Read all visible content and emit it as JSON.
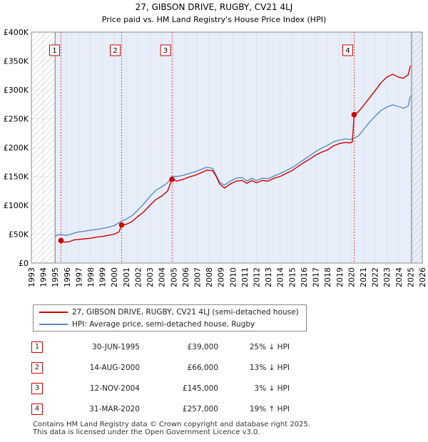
{
  "chart_data": {
    "type": "line",
    "title": "27, GIBSON DRIVE, RUGBY, CV21 4LJ",
    "subtitle": "Price paid vs. HM Land Registry's House Price Index (HPI)",
    "xlim": [
      1993,
      2026
    ],
    "ylim": [
      0,
      400000
    ],
    "x_ticks": [
      "1993",
      "1994",
      "1995",
      "1996",
      "1997",
      "1998",
      "1999",
      "2000",
      "2001",
      "2002",
      "2003",
      "2004",
      "2005",
      "2006",
      "2007",
      "2008",
      "2009",
      "2010",
      "2011",
      "2012",
      "2013",
      "2014",
      "2015",
      "2016",
      "2017",
      "2018",
      "2019",
      "2020",
      "2021",
      "2022",
      "2023",
      "2024",
      "2025",
      "2026"
    ],
    "y_ticks": [
      {
        "value": 0,
        "label": "£0"
      },
      {
        "value": 50000,
        "label": "£50K"
      },
      {
        "value": 100000,
        "label": "£100K"
      },
      {
        "value": 150000,
        "label": "£150K"
      },
      {
        "value": 200000,
        "label": "£200K"
      },
      {
        "value": 250000,
        "label": "£250K"
      },
      {
        "value": 300000,
        "label": "£300K"
      },
      {
        "value": 350000,
        "label": "£350K"
      },
      {
        "value": 400000,
        "label": "£400K"
      }
    ],
    "hatched_before": 1995.0,
    "hatched_after": 2025.1,
    "series": [
      {
        "name": "27, GIBSON DRIVE, RUGBY, CV21 4LJ (semi-detached house)",
        "color": "#cc0000",
        "points": [
          [
            1995.3,
            38000
          ],
          [
            1995.5,
            39000
          ],
          [
            1995.8,
            36000
          ],
          [
            1996.2,
            37000
          ],
          [
            1996.6,
            40000
          ],
          [
            1997.0,
            41000
          ],
          [
            1997.5,
            42000
          ],
          [
            1998.0,
            43000
          ],
          [
            1998.5,
            45000
          ],
          [
            1999.0,
            46000
          ],
          [
            1999.5,
            48000
          ],
          [
            2000.0,
            50000
          ],
          [
            2000.4,
            54000
          ],
          [
            2000.62,
            66000
          ],
          [
            2001.0,
            67000
          ],
          [
            2001.5,
            72000
          ],
          [
            2002.0,
            81000
          ],
          [
            2002.5,
            89000
          ],
          [
            2003.0,
            100000
          ],
          [
            2003.5,
            110000
          ],
          [
            2004.0,
            116000
          ],
          [
            2004.5,
            125000
          ],
          [
            2004.87,
            145000
          ],
          [
            2005.3,
            142000
          ],
          [
            2005.8,
            145000
          ],
          [
            2006.3,
            149000
          ],
          [
            2006.8,
            152000
          ],
          [
            2007.3,
            156000
          ],
          [
            2007.8,
            161000
          ],
          [
            2008.3,
            160000
          ],
          [
            2008.6,
            150000
          ],
          [
            2008.9,
            137000
          ],
          [
            2009.3,
            130000
          ],
          [
            2009.8,
            137000
          ],
          [
            2010.3,
            142000
          ],
          [
            2010.8,
            143000
          ],
          [
            2011.2,
            138000
          ],
          [
            2011.6,
            143000
          ],
          [
            2012.0,
            139000
          ],
          [
            2012.5,
            143000
          ],
          [
            2013.0,
            142000
          ],
          [
            2013.5,
            147000
          ],
          [
            2014.0,
            150000
          ],
          [
            2014.5,
            155000
          ],
          [
            2015.0,
            160000
          ],
          [
            2015.5,
            167000
          ],
          [
            2016.0,
            174000
          ],
          [
            2016.5,
            180000
          ],
          [
            2017.0,
            187000
          ],
          [
            2017.5,
            192000
          ],
          [
            2018.0,
            196000
          ],
          [
            2018.5,
            203000
          ],
          [
            2019.0,
            207000
          ],
          [
            2019.5,
            209000
          ],
          [
            2019.9,
            208000
          ],
          [
            2020.1,
            210000
          ],
          [
            2020.25,
            257000
          ],
          [
            2020.6,
            262000
          ],
          [
            2021.0,
            272000
          ],
          [
            2021.5,
            285000
          ],
          [
            2022.0,
            298000
          ],
          [
            2022.5,
            312000
          ],
          [
            2023.0,
            322000
          ],
          [
            2023.5,
            327000
          ],
          [
            2024.0,
            322000
          ],
          [
            2024.4,
            320000
          ],
          [
            2024.8,
            326000
          ],
          [
            2025.0,
            342000
          ]
        ]
      },
      {
        "name": "HPI: Average price, semi-detached house, Rugby",
        "color": "#5b8ac6",
        "points": [
          [
            1995.0,
            47000
          ],
          [
            1995.5,
            50000
          ],
          [
            1995.8,
            48000
          ],
          [
            1996.2,
            49000
          ],
          [
            1996.6,
            52000
          ],
          [
            1997.0,
            54000
          ],
          [
            1997.5,
            55000
          ],
          [
            1998.0,
            57000
          ],
          [
            1998.5,
            58000
          ],
          [
            1999.0,
            60000
          ],
          [
            1999.5,
            62000
          ],
          [
            2000.0,
            65000
          ],
          [
            2000.4,
            70000
          ],
          [
            2000.62,
            73000
          ],
          [
            2001.0,
            76000
          ],
          [
            2001.5,
            82000
          ],
          [
            2002.0,
            92000
          ],
          [
            2002.5,
            103000
          ],
          [
            2003.0,
            115000
          ],
          [
            2003.5,
            126000
          ],
          [
            2004.0,
            132000
          ],
          [
            2004.5,
            139000
          ],
          [
            2004.87,
            150000
          ],
          [
            2005.3,
            150000
          ],
          [
            2005.8,
            152000
          ],
          [
            2006.3,
            155000
          ],
          [
            2006.8,
            158000
          ],
          [
            2007.3,
            162000
          ],
          [
            2007.8,
            166000
          ],
          [
            2008.3,
            164000
          ],
          [
            2008.6,
            152000
          ],
          [
            2008.9,
            140000
          ],
          [
            2009.3,
            135000
          ],
          [
            2009.8,
            142000
          ],
          [
            2010.3,
            147000
          ],
          [
            2010.8,
            148000
          ],
          [
            2011.2,
            142000
          ],
          [
            2011.6,
            147000
          ],
          [
            2012.0,
            143000
          ],
          [
            2012.5,
            147000
          ],
          [
            2013.0,
            146000
          ],
          [
            2013.5,
            151000
          ],
          [
            2014.0,
            155000
          ],
          [
            2014.5,
            160000
          ],
          [
            2015.0,
            165000
          ],
          [
            2015.5,
            172000
          ],
          [
            2016.0,
            179000
          ],
          [
            2016.5,
            186000
          ],
          [
            2017.0,
            193000
          ],
          [
            2017.5,
            199000
          ],
          [
            2018.0,
            204000
          ],
          [
            2018.5,
            210000
          ],
          [
            2019.0,
            213000
          ],
          [
            2019.5,
            215000
          ],
          [
            2019.9,
            214000
          ],
          [
            2020.25,
            216000
          ],
          [
            2020.6,
            220000
          ],
          [
            2021.0,
            230000
          ],
          [
            2021.5,
            243000
          ],
          [
            2022.0,
            254000
          ],
          [
            2022.5,
            264000
          ],
          [
            2023.0,
            270000
          ],
          [
            2023.5,
            274000
          ],
          [
            2024.0,
            271000
          ],
          [
            2024.4,
            268000
          ],
          [
            2024.8,
            272000
          ],
          [
            2025.0,
            290000
          ]
        ]
      }
    ],
    "sales": [
      {
        "label": "1",
        "x": 1995.5,
        "price": 39000
      },
      {
        "label": "2",
        "x": 2000.62,
        "price": 66000
      },
      {
        "label": "3",
        "x": 2004.87,
        "price": 145000
      },
      {
        "label": "4",
        "x": 2020.25,
        "price": 257000
      }
    ]
  },
  "legend": {
    "property_label": "27, GIBSON DRIVE, RUGBY, CV21 4LJ (semi-detached house)",
    "hpi_label": "HPI: Average price, semi-detached house, Rugby",
    "property_color": "#cc0000",
    "hpi_color": "#5b8ac6"
  },
  "table": [
    {
      "num": "1",
      "date": "30-JUN-1995",
      "price": "£39,000",
      "hpi": "25% ↓ HPI"
    },
    {
      "num": "2",
      "date": "14-AUG-2000",
      "price": "£66,000",
      "hpi": "13% ↓ HPI"
    },
    {
      "num": "3",
      "date": "12-NOV-2004",
      "price": "£145,000",
      "hpi": "3% ↓ HPI"
    },
    {
      "num": "4",
      "date": "31-MAR-2020",
      "price": "£257,000",
      "hpi": "19% ↑ HPI"
    }
  ],
  "footer": {
    "line1": "Contains HM Land Registry data © Crown copyright and database right 2025.",
    "line2": "This data is licensed under the Open Government Licence v3.0."
  }
}
